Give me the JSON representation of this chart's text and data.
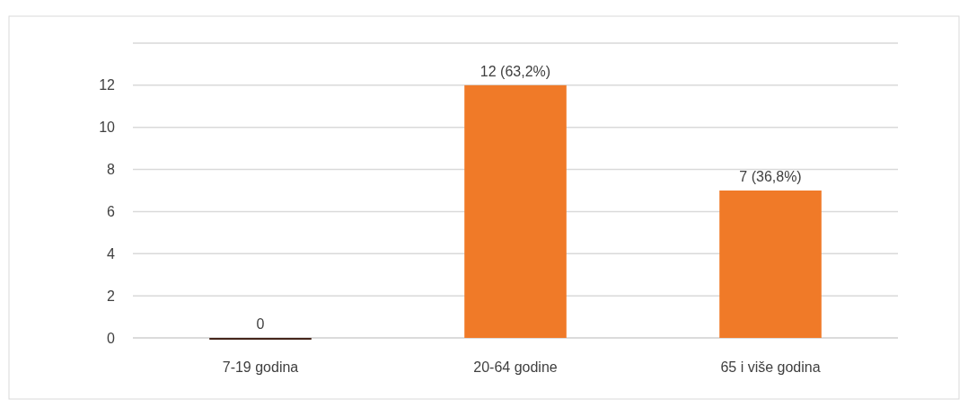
{
  "chart_data": {
    "type": "bar",
    "categories": [
      "7-19 godina",
      "20-64 godine",
      "65 i više godina"
    ],
    "values": [
      0,
      12,
      7
    ],
    "colors": [
      "#45251a",
      "#f07a28",
      "#f07a28"
    ],
    "value_labels": [
      "0",
      "12 (63,2%)",
      "7 (36,8%)"
    ],
    "ylim": [
      0,
      14
    ],
    "yticks": [
      0,
      2,
      4,
      6,
      8,
      10,
      12,
      {
        "value": 14,
        "label": null
      }
    ],
    "grid": "y"
  }
}
